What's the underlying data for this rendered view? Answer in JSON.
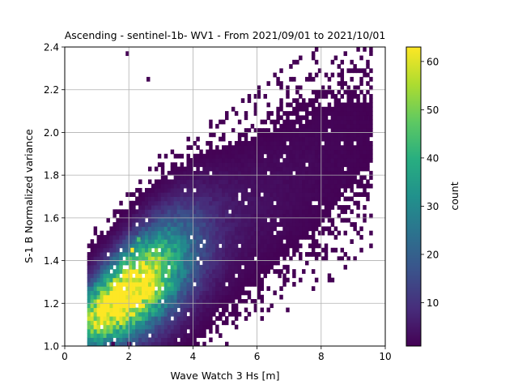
{
  "chart_data": {
    "type": "heatmap",
    "title": "Ascending - sentinel-1b- WV1 - From 2021/09/01 to 2021/10/01",
    "xlabel": "Wave Watch 3 Hs [m]",
    "ylabel": "S-1 B Normalized variance",
    "xlim": [
      0,
      10
    ],
    "ylim": [
      1.0,
      2.4
    ],
    "xticks": [
      "0",
      "2",
      "4",
      "6",
      "8",
      "10"
    ],
    "yticks": [
      "1.0",
      "1.2",
      "1.4",
      "1.6",
      "1.8",
      "2.0",
      "2.2",
      "2.4"
    ],
    "grid": true,
    "bin_width_x": 0.1,
    "bin_width_y": 0.02,
    "colormap": "viridis",
    "colorbar": {
      "label": "count",
      "min": 1,
      "max": 63,
      "ticks": [
        "10",
        "20",
        "30",
        "40",
        "50",
        "60"
      ]
    },
    "density_peak": {
      "x": 2.1,
      "y": 1.45,
      "count": 63
    },
    "notable_cells": [
      {
        "x": 1.85,
        "y": 1.35,
        "count": 55
      },
      {
        "x": 2.1,
        "y": 1.45,
        "count": 63
      },
      {
        "x": 2.3,
        "y": 1.5,
        "count": 45
      },
      {
        "x": 6.7,
        "y": 1.33,
        "count": 1
      },
      {
        "x": 9.4,
        "y": 2.07,
        "count": 1
      },
      {
        "x": 8.7,
        "y": 1.77,
        "count": 2
      },
      {
        "x": 2.6,
        "y": 2.25,
        "count": 1
      },
      {
        "x": 1.95,
        "y": 2.37,
        "count": 1
      },
      {
        "x": 1.5,
        "y": 1.01,
        "count": 1
      },
      {
        "x": 2.0,
        "y": 1.01,
        "count": 1
      }
    ]
  }
}
